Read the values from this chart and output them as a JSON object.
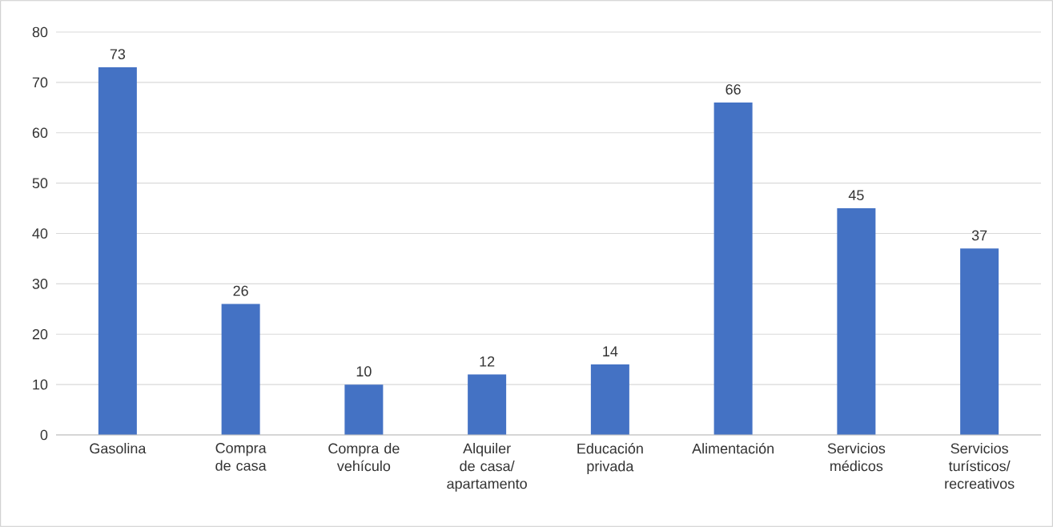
{
  "chart_data": {
    "type": "bar",
    "categories": [
      "Gasolina",
      "Compra de casa",
      "Compra de vehículo",
      "Alquiler de casa/ apartamento",
      "Educación privada",
      "Alimentación",
      "Servicios médicos",
      "Servicios turísticos/ recreativos"
    ],
    "values": [
      73,
      26,
      10,
      12,
      14,
      66,
      45,
      37
    ],
    "color": "#4472c4",
    "ylim": [
      0,
      80
    ],
    "yticks": [
      0,
      10,
      20,
      30,
      40,
      50,
      60,
      70,
      80
    ],
    "grid": "y",
    "data_labels": true
  }
}
